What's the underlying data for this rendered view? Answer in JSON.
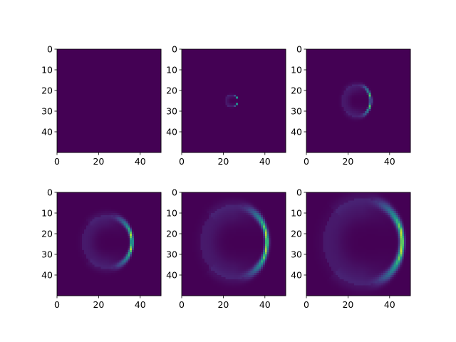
{
  "chart_data": {
    "type": "heatmap",
    "colormap": "viridis",
    "grid": false,
    "legend": "none",
    "layout": {
      "rows": 2,
      "cols": 3
    },
    "xlim": [
      0,
      50
    ],
    "ylim": [
      50,
      0
    ],
    "xticks": [
      0,
      20,
      40
    ],
    "yticks": [
      0,
      10,
      20,
      30,
      40
    ],
    "panels": [
      {
        "frame": 0,
        "ring": null
      },
      {
        "frame": 1,
        "ring": {
          "cx": 24,
          "cy": 25,
          "rx": 3,
          "ry": 3,
          "front_x": 26,
          "intensity": 1.0
        }
      },
      {
        "frame": 2,
        "ring": {
          "cx": 24,
          "cy": 25,
          "rx": 7,
          "ry": 8,
          "front_x": 30,
          "intensity": 1.0
        }
      },
      {
        "frame": 3,
        "ring": {
          "cx": 24,
          "cy": 24,
          "rx": 12,
          "ry": 13,
          "front_x": 36,
          "intensity": 1.0
        }
      },
      {
        "frame": 4,
        "ring": {
          "cx": 25,
          "cy": 24,
          "rx": 16,
          "ry": 18,
          "front_x": 41,
          "intensity": 1.0
        }
      },
      {
        "frame": 5,
        "ring": {
          "cx": 27,
          "cy": 24,
          "rx": 19,
          "ry": 21,
          "front_x": 46,
          "intensity": 1.0
        }
      }
    ]
  }
}
